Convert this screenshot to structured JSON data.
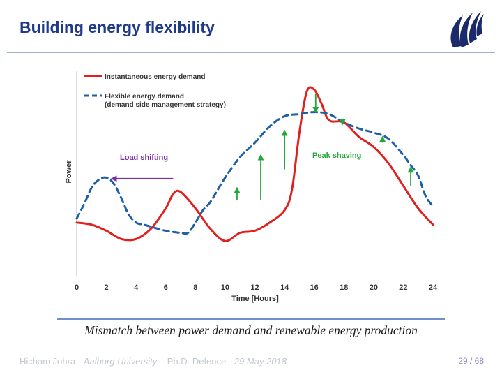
{
  "slide": {
    "title": "Building energy flexibility",
    "caption": "Mismatch between power demand and renewable energy production",
    "footer": {
      "author": "Hicham Johra",
      "sep1": " - ",
      "affiliation": "Aalborg University",
      "sep2": " – Ph.D. Defence - ",
      "date": "29 May 2018",
      "page": "29 / 68"
    }
  },
  "colors": {
    "title": "#1f3a8a",
    "instantaneous": "#e0201e",
    "flexible": "#1f5fa6",
    "load_shifting": "#7a2d9c",
    "peak_shaving": "#22a83a",
    "logo": "#1b2a6b"
  },
  "chart_data": {
    "type": "line",
    "xlabel": "Time [Hours]",
    "ylabel": "Power",
    "x_ticks": [
      0,
      2,
      4,
      6,
      8,
      10,
      12,
      14,
      16,
      18,
      20,
      22,
      24
    ],
    "xlim": [
      0,
      24
    ],
    "ylim": [
      0,
      10
    ],
    "grid": false,
    "legend_position": "top-left",
    "series": [
      {
        "name": "Instantaneous energy demand",
        "style": "solid",
        "x": [
          0,
          1,
          2,
          3,
          4,
          5,
          6,
          6.5,
          7,
          8,
          9,
          10,
          11,
          12,
          13,
          14,
          14.5,
          15,
          15.5,
          16,
          16.5,
          17,
          18,
          19,
          20,
          21,
          22,
          23,
          24
        ],
        "y": [
          2.6,
          2.5,
          2.2,
          1.8,
          1.8,
          2.3,
          3.3,
          4.0,
          4.1,
          3.3,
          2.3,
          1.7,
          2.1,
          2.2,
          2.6,
          3.2,
          4.2,
          7.0,
          9.0,
          9.1,
          8.4,
          7.6,
          7.5,
          6.8,
          6.3,
          5.5,
          4.4,
          3.3,
          2.5
        ]
      },
      {
        "name": "Flexible energy demand",
        "name_line2": "(demand side management strategy)",
        "style": "dashed",
        "x": [
          0,
          0.5,
          1,
          1.5,
          2,
          2.5,
          3,
          3.5,
          4,
          4.5,
          5,
          6,
          7,
          7.5,
          8,
          8.5,
          9,
          9.5,
          10,
          11,
          12,
          13,
          14,
          15,
          16,
          17,
          18,
          19,
          20,
          21,
          22,
          22.5,
          23,
          23.5,
          24
        ],
        "y": [
          2.8,
          3.5,
          4.3,
          4.7,
          4.8,
          4.5,
          3.8,
          3.0,
          2.6,
          2.5,
          2.4,
          2.2,
          2.1,
          2.1,
          2.6,
          3.2,
          3.6,
          4.2,
          4.8,
          5.8,
          6.5,
          7.3,
          7.8,
          7.9,
          8.0,
          7.9,
          7.5,
          7.2,
          7.0,
          6.7,
          5.9,
          5.4,
          4.9,
          3.9,
          3.4
        ]
      }
    ],
    "annotations": [
      {
        "text": "Load shifting",
        "type": "arrow-left",
        "from": [
          6.5,
          4.75
        ],
        "to": [
          2.5,
          4.75
        ]
      },
      {
        "text": "Peak shaving",
        "arrows_down": [
          [
            16.1,
            9.1,
            7.9
          ],
          [
            17.9,
            7.8,
            7.3
          ]
        ],
        "arrows_up": [
          [
            10.8,
            3.5,
            4.4
          ],
          [
            12.4,
            3.5,
            6.0
          ],
          [
            14.0,
            5.0,
            7.2
          ],
          [
            20.6,
            6.3,
            6.9
          ],
          [
            22.5,
            4.2,
            5.4
          ]
        ]
      }
    ]
  }
}
